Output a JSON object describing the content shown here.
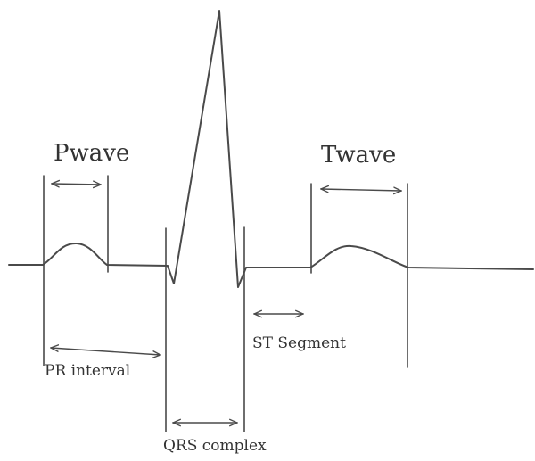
{
  "diagram": {
    "labels": {
      "p_wave": "Pwave",
      "t_wave": "Twave",
      "st_segment": "ST Segment",
      "pr_interval": "PR interval",
      "qrs_complex": "QRS complex"
    },
    "colors": {
      "ink": "#4a4a4a",
      "text": "#333333",
      "background": "#ffffff"
    }
  }
}
